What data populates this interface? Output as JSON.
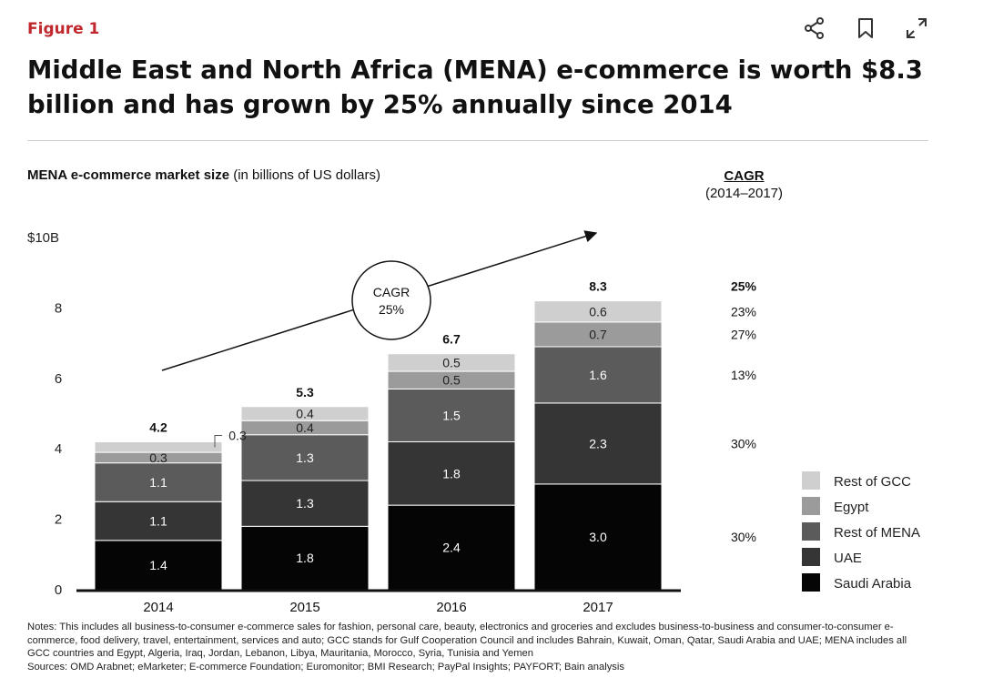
{
  "figure_label": "Figure 1",
  "title": "Middle East and North Africa (MENA) e-commerce is worth $8.3 billion and has grown by 25% annually since 2014",
  "toolbar": {
    "icons": [
      "share-icon",
      "bookmark-icon",
      "expand-icon"
    ]
  },
  "colors": {
    "accent": "#c0282d"
  },
  "chart_data": {
    "type": "bar",
    "stacked": true,
    "title_bold": "MENA e-commerce market size",
    "title_rest": "(in billions of US dollars)",
    "ylim": [
      0,
      10
    ],
    "yticks": [
      "0",
      "2",
      "4",
      "6",
      "8",
      "$10B"
    ],
    "categories": [
      "2014",
      "2015",
      "2016",
      "2017"
    ],
    "totals": [
      "4.2",
      "5.3",
      "6.7",
      "8.3"
    ],
    "series": [
      {
        "name": "Saudi Arabia",
        "color": "#050505",
        "values": [
          1.4,
          1.8,
          2.4,
          3.0
        ],
        "labels": [
          "1.4",
          "1.8",
          "2.4",
          "3.0"
        ]
      },
      {
        "name": "UAE",
        "color": "#353535",
        "values": [
          1.1,
          1.3,
          1.8,
          2.3
        ],
        "labels": [
          "1.1",
          "1.3",
          "1.8",
          "2.3"
        ]
      },
      {
        "name": "Rest of MENA",
        "color": "#5b5b5b",
        "values": [
          1.1,
          1.3,
          1.5,
          1.6
        ],
        "labels": [
          "1.1",
          "1.3",
          "1.5",
          "1.6"
        ]
      },
      {
        "name": "Egypt",
        "color": "#9b9b9b",
        "values": [
          0.3,
          0.4,
          0.5,
          0.7
        ],
        "labels": [
          "0.3",
          "0.4",
          "0.5",
          "0.7"
        ]
      },
      {
        "name": "Rest of GCC",
        "color": "#cfcfcf",
        "values": [
          0.3,
          0.4,
          0.5,
          0.6
        ],
        "labels": [
          "0.3",
          "0.4",
          "0.5",
          "0.6"
        ]
      }
    ],
    "cagr_header": "CAGR",
    "cagr_period": "(2014–2017)",
    "cagr_total": "25%",
    "cagr_by_segment": [
      "30%",
      "30%",
      "13%",
      "27%",
      "23%"
    ],
    "cagr_bubble": {
      "line1": "CAGR",
      "line2": "25%"
    },
    "legend": [
      "Rest of GCC",
      "Egypt",
      "Rest of MENA",
      "UAE",
      "Saudi Arabia"
    ],
    "legend_position": "bottom-right"
  },
  "notes": [
    "Notes: This includes all business-to-consumer e-commerce sales for fashion, personal care, beauty, electronics and groceries and excludes business-to-business and consumer-to-consumer e-commerce, food delivery, travel, entertainment, services and auto; GCC stands for Gulf Cooperation Council and includes Bahrain, Kuwait, Oman, Qatar, Saudi Arabia and UAE; MENA includes all GCC countries and Egypt, Algeria, Iraq, Jordan, Lebanon, Libya, Mauritania, Morocco, Syria, Tunisia and Yemen",
    "Sources: OMD Arabnet; eMarketer; E-commerce Foundation; Euromonitor; BMI Research; PayPal Insights; PAYFORT; Bain analysis"
  ]
}
